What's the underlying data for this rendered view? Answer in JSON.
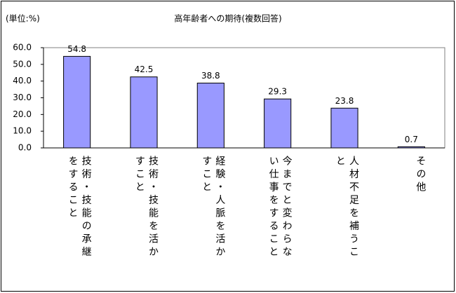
{
  "chart_data": {
    "type": "bar",
    "title": "高年齢者への期待(複数回答)",
    "unit_label": "(単位:%)",
    "categories": [
      "技術・技能の承継をすること",
      "技術・技能を活かすこと",
      "経験・人脈を活かすこと",
      "今までと変わらない仕事をすること",
      "人材不足を補うこと",
      "その他"
    ],
    "values": [
      54.8,
      42.5,
      38.8,
      29.3,
      23.8,
      0.7
    ],
    "color": "#9999ff",
    "ylim": [
      0,
      60
    ],
    "yticks": [
      {
        "value": 0,
        "label": "0.0"
      },
      {
        "value": 10,
        "label": "10.0"
      },
      {
        "value": 20,
        "label": "20.0"
      },
      {
        "value": 30,
        "label": "30.0"
      },
      {
        "value": 40,
        "label": "40.0"
      },
      {
        "value": 50,
        "label": "50.0"
      },
      {
        "value": 60,
        "label": "60.0"
      }
    ],
    "grid": false
  }
}
